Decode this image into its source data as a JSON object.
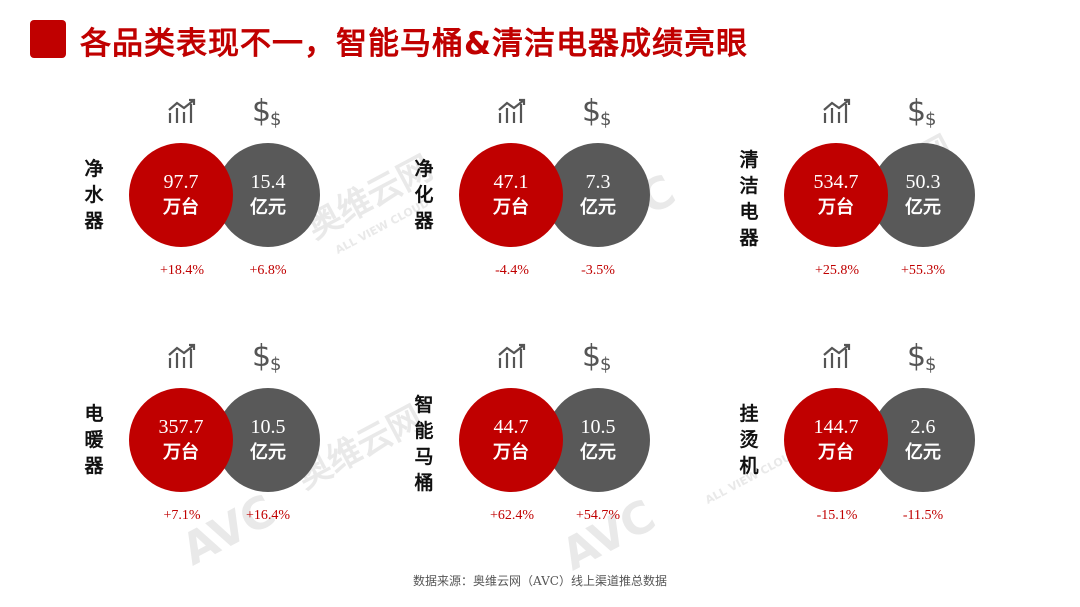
{
  "title": "各品类表现不一，智能马桶&清洁电器成绩亮眼",
  "source": "数据来源：奥维云网（AVC）线上渠道推总数据",
  "watermark": {
    "brand_cn": "奥维云网",
    "brand_en": "AVC",
    "tagline": "ALL VIEW CLOUD"
  },
  "colors": {
    "accent": "#c00000",
    "grey": "#595959"
  },
  "icons": {
    "volume": "volume-trend-icon",
    "revenue": "dollar-icon"
  },
  "cards": [
    {
      "category": [
        "净",
        "水",
        "器"
      ],
      "volume": "97.7",
      "volume_unit": "万台",
      "revenue": "15.4",
      "revenue_unit": "亿元",
      "volume_change": "+18.4%",
      "revenue_change": "+6.8%"
    },
    {
      "category": [
        "净",
        "化",
        "器"
      ],
      "volume": "47.1",
      "volume_unit": "万台",
      "revenue": "7.3",
      "revenue_unit": "亿元",
      "volume_change": "-4.4%",
      "revenue_change": "-3.5%"
    },
    {
      "category": [
        "清",
        "洁",
        "电",
        "器"
      ],
      "volume": "534.7",
      "volume_unit": "万台",
      "revenue": "50.3",
      "revenue_unit": "亿元",
      "volume_change": "+25.8%",
      "revenue_change": "+55.3%"
    },
    {
      "category": [
        "电",
        "暖",
        "器"
      ],
      "volume": "357.7",
      "volume_unit": "万台",
      "revenue": "10.5",
      "revenue_unit": "亿元",
      "volume_change": "+7.1%",
      "revenue_change": "+16.4%"
    },
    {
      "category": [
        "智",
        "能",
        "马",
        "桶"
      ],
      "volume": "44.7",
      "volume_unit": "万台",
      "revenue": "10.5",
      "revenue_unit": "亿元",
      "volume_change": "+62.4%",
      "revenue_change": "+54.7%"
    },
    {
      "category": [
        "挂",
        "烫",
        "机"
      ],
      "volume": "144.7",
      "volume_unit": "万台",
      "revenue": "2.6",
      "revenue_unit": "亿元",
      "volume_change": "-15.1%",
      "revenue_change": "-11.5%"
    }
  ]
}
